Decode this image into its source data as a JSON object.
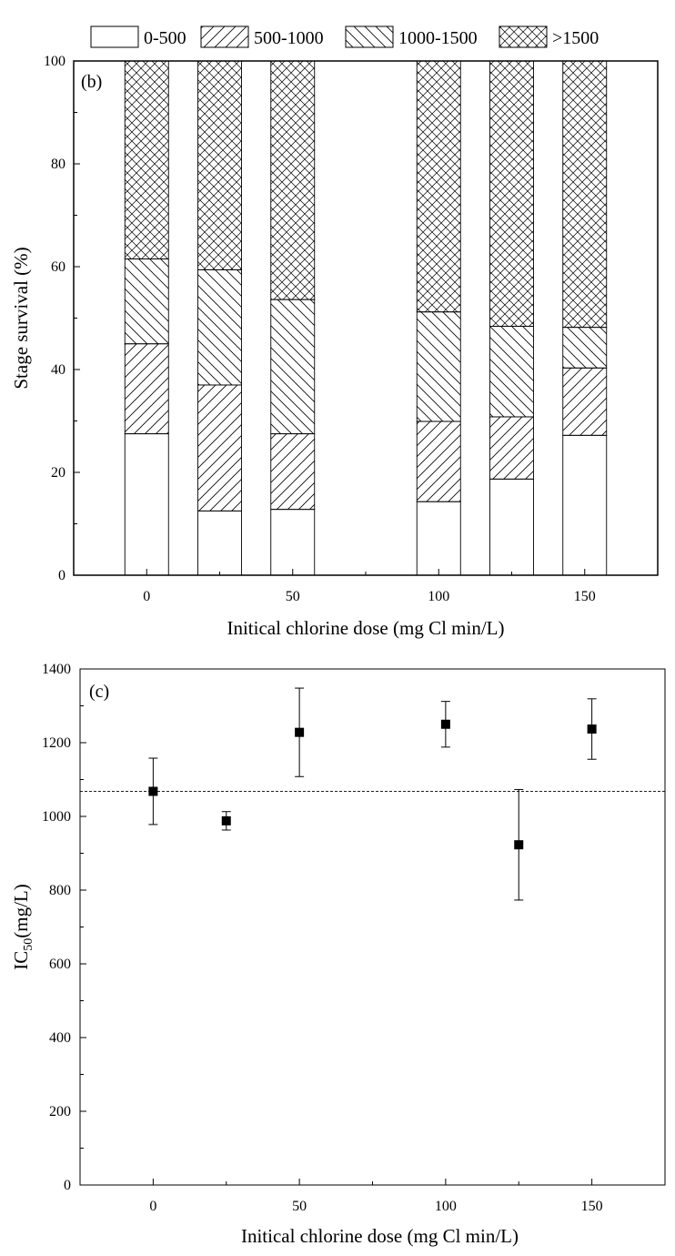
{
  "chart_data": [
    {
      "type": "bar",
      "stacked": true,
      "panel_label": "(b)",
      "title": "",
      "xlabel": "Initical chlorine dose (mg Cl min/L)",
      "ylabel": "Stage survival (%)",
      "xlim": [
        -25,
        175
      ],
      "ylim": [
        0,
        100
      ],
      "x_ticks": [
        0,
        50,
        100,
        150
      ],
      "x_tick_labels": [
        "0",
        "50",
        "100",
        "150"
      ],
      "y_ticks": [
        0,
        20,
        40,
        60,
        80,
        100
      ],
      "y_tick_labels": [
        "0",
        "20",
        "40",
        "60",
        "80",
        "100"
      ],
      "legend": {
        "placement": "top",
        "entries": [
          "0-500",
          "500-1000",
          "1000-1500",
          ">1500"
        ]
      },
      "x": [
        0,
        25,
        50,
        100,
        125,
        150
      ],
      "series": [
        {
          "name": "0-500",
          "pattern": "none",
          "values": [
            27.5,
            12.5,
            12.8,
            14.3,
            18.7,
            27.2
          ]
        },
        {
          "name": "500-1000",
          "pattern": "forward-hatch",
          "values": [
            17.5,
            24.5,
            14.7,
            15.6,
            12.1,
            13.1
          ]
        },
        {
          "name": "1000-1500",
          "pattern": "back-hatch",
          "values": [
            16.5,
            22.4,
            26.1,
            21.3,
            17.6,
            7.9
          ]
        },
        {
          "name": ">1500",
          "pattern": "cross-hatch",
          "values": [
            38.5,
            40.6,
            46.4,
            48.8,
            51.6,
            51.8
          ]
        }
      ]
    },
    {
      "type": "scatter",
      "panel_label": "(c)",
      "title": "",
      "xlabel": "Initical chlorine dose (mg Cl min/L)",
      "ylabel_main": "IC",
      "ylabel_sub": "50",
      "ylabel_tail": "(mg/L)",
      "xlim": [
        -25,
        175
      ],
      "ylim": [
        0,
        1400
      ],
      "x_ticks": [
        0,
        50,
        100,
        150
      ],
      "x_tick_labels": [
        "0",
        "50",
        "100",
        "150"
      ],
      "y_ticks": [
        0,
        200,
        400,
        600,
        800,
        1000,
        1200,
        1400
      ],
      "y_tick_labels": [
        "0",
        "200",
        "400",
        "600",
        "800",
        "1000",
        "1200",
        "1400"
      ],
      "reference_line": 1068,
      "points": [
        {
          "x": 0,
          "y": 1068,
          "err": 90
        },
        {
          "x": 25,
          "y": 988,
          "err": 25
        },
        {
          "x": 50,
          "y": 1228,
          "err": 120
        },
        {
          "x": 100,
          "y": 1250,
          "err": 62
        },
        {
          "x": 125,
          "y": 923,
          "err": 150
        },
        {
          "x": 150,
          "y": 1237,
          "err": 82
        }
      ]
    }
  ]
}
